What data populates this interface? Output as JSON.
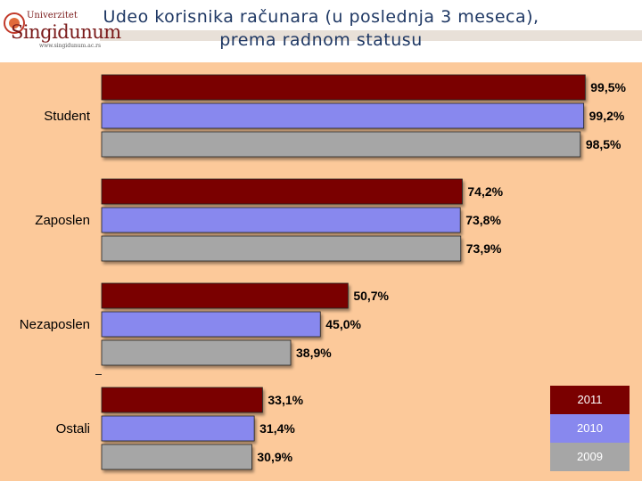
{
  "header": {
    "title_line1": "Udeo korisnika računara (u poslednja 3 meseca),",
    "title_line2": "prema radnom statusu",
    "logo_top": "Univerzitet",
    "logo_name": "Singidunum",
    "logo_url": "www.singidunum.ac.rs"
  },
  "colors": {
    "background": "#fcc99a",
    "title": "#1f3864",
    "series_2011": "#7a0000",
    "series_2010": "#8888ee",
    "series_2009": "#a6a6a6"
  },
  "chart_data": {
    "type": "bar",
    "orientation": "horizontal",
    "title": "Udeo korisnika računara (u poslednja 3 meseca), prema radnom statusu",
    "categories": [
      "Student",
      "Zaposlen",
      "Nezaposlen",
      "Ostali"
    ],
    "xlim": [
      0,
      100
    ],
    "grid": false,
    "legend": "bottom-right",
    "series": [
      {
        "name": "2011",
        "color": "#7a0000",
        "values": [
          99.5,
          74.2,
          50.7,
          33.1
        ],
        "labels": [
          "99,5%",
          "74,2%",
          "50,7%",
          "33,1%"
        ]
      },
      {
        "name": "2010",
        "color": "#8888ee",
        "values": [
          99.2,
          73.8,
          45.0,
          31.4
        ],
        "labels": [
          "99,2%",
          "73,8%",
          "45,0%",
          "31,4%"
        ]
      },
      {
        "name": "2009",
        "color": "#a6a6a6",
        "values": [
          98.5,
          73.9,
          38.9,
          30.9
        ],
        "labels": [
          "98,5%",
          "73,9%",
          "38,9%",
          "30,9%"
        ]
      }
    ]
  }
}
